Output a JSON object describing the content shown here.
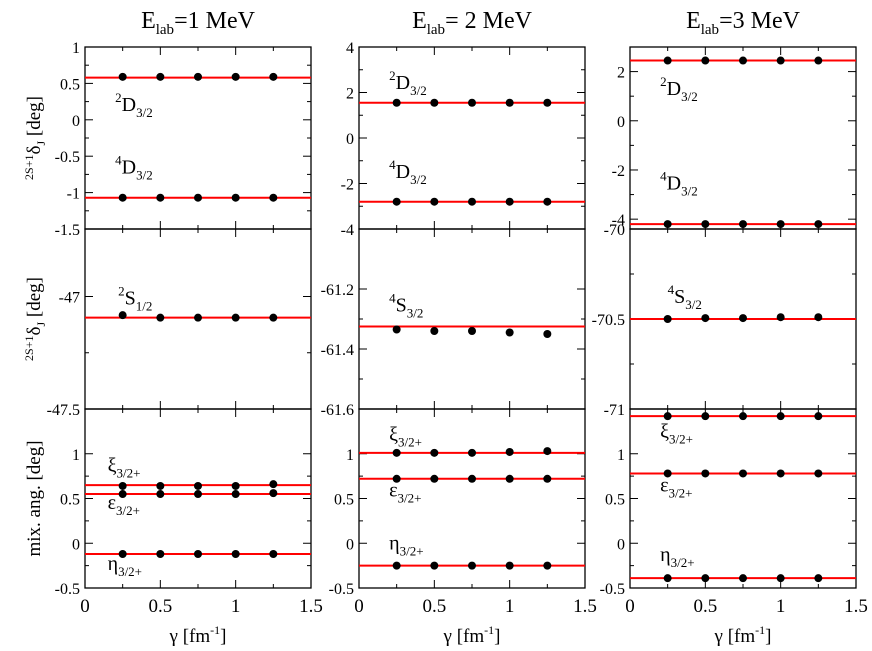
{
  "colors": {
    "line": "#ff0000",
    "point": "#000000",
    "frame": "#000000"
  },
  "chart_data": {
    "type": "scatter",
    "x": [
      0.25,
      0.5,
      0.75,
      1.0,
      1.25
    ],
    "xlim": [
      0,
      1.5
    ],
    "xticks": [
      "0",
      "0.5",
      "1",
      "1.5"
    ],
    "xtick_values": [
      0,
      0.5,
      1,
      1.5
    ],
    "xlabel_main": "γ",
    "xlabel_unit": "[fm",
    "xlabel_exp": "-1",
    "xlabel_close": "]",
    "row_labels": [
      {
        "pre": "2S+1",
        "main": "δ",
        "sub": "J",
        "post": " [deg]"
      },
      {
        "pre": "2S+1",
        "main": "δ",
        "sub": "J",
        "post": " [deg]"
      },
      {
        "pre": "",
        "main": "mix. ang. [deg]",
        "sub": "",
        "post": ""
      }
    ],
    "columns": [
      {
        "title_main": "E",
        "title_sub": "lab",
        "title_rest": "=1 MeV"
      },
      {
        "title_main": "E",
        "title_sub": "lab",
        "title_rest": "= 2 MeV"
      },
      {
        "title_main": "E",
        "title_sub": "lab",
        "title_rest": "=3 MeV"
      }
    ],
    "panels": [
      {
        "row": 0,
        "col": 0,
        "ylim": [
          -1.5,
          1
        ],
        "ytick_values": [
          -1.5,
          -1,
          -0.5,
          0,
          0.5,
          1
        ],
        "ytick_labels": [
          "-1.5",
          "-1",
          "-0.5",
          "0",
          "0.5",
          "1"
        ],
        "series": [
          {
            "name": "2D3/2",
            "line": 0.58,
            "values": [
              0.59,
              0.59,
              0.59,
              0.59,
              0.59
            ],
            "label": {
              "sup": "2",
              "main": "D",
              "sub": "3/2",
              "x": 0.2,
              "y": 0.12
            }
          },
          {
            "name": "4D3/2",
            "line": -1.07,
            "values": [
              -1.07,
              -1.07,
              -1.07,
              -1.07,
              -1.07
            ],
            "label": {
              "sup": "4",
              "main": "D",
              "sub": "3/2",
              "x": 0.2,
              "y": -0.74
            }
          }
        ]
      },
      {
        "row": 0,
        "col": 1,
        "ylim": [
          -4,
          4
        ],
        "ytick_values": [
          -4,
          -2,
          0,
          2,
          4
        ],
        "ytick_labels": [
          "-4",
          "-2",
          "0",
          "2",
          "4"
        ],
        "series": [
          {
            "name": "2D3/2",
            "line": 1.55,
            "values": [
              1.55,
              1.55,
              1.55,
              1.55,
              1.55
            ],
            "label": {
              "sup": "2",
              "main": "D",
              "sub": "3/2",
              "x": 0.2,
              "y": 2.15
            }
          },
          {
            "name": "4D3/2",
            "line": -2.8,
            "values": [
              -2.8,
              -2.8,
              -2.8,
              -2.8,
              -2.8
            ],
            "label": {
              "sup": "4",
              "main": "D",
              "sub": "3/2",
              "x": 0.2,
              "y": -1.75
            }
          }
        ]
      },
      {
        "row": 0,
        "col": 2,
        "ylim": [
          -4.4,
          3
        ],
        "ytick_values": [
          -4,
          -2,
          0,
          2
        ],
        "ytick_labels": [
          "-4",
          "-2",
          "0",
          "2"
        ],
        "series": [
          {
            "name": "2D3/2",
            "line": 2.45,
            "values": [
              2.45,
              2.45,
              2.45,
              2.45,
              2.45
            ],
            "label": {
              "sup": "2",
              "main": "D",
              "sub": "3/2",
              "x": 0.2,
              "y": 1.05
            }
          },
          {
            "name": "4D3/2",
            "line": -4.2,
            "values": [
              -4.2,
              -4.2,
              -4.2,
              -4.2,
              -4.2
            ],
            "label": {
              "sup": "4",
              "main": "D",
              "sub": "3/2",
              "x": 0.2,
              "y": -2.8
            }
          }
        ]
      },
      {
        "row": 1,
        "col": 0,
        "ylim": [
          -47.5,
          -46.7
        ],
        "ytick_values": [
          -47.5,
          -47
        ],
        "ytick_labels": [
          "-47.5",
          "-47"
        ],
        "series": [
          {
            "name": "2S1/2",
            "line": -47.094,
            "values": [
              -47.083,
              -47.094,
              -47.094,
              -47.094,
              -47.094
            ],
            "label": {
              "sup": "2",
              "main": "S",
              "sub": "1/2",
              "x": 0.22,
              "y": -47.035
            }
          }
        ]
      },
      {
        "row": 1,
        "col": 1,
        "ylim": [
          -61.6,
          -61.0
        ],
        "ytick_values": [
          -61.6,
          -61.4,
          -61.2
        ],
        "ytick_labels": [
          "-61.6",
          "-61.4",
          "-61.2"
        ],
        "series": [
          {
            "name": "4S3/2",
            "line": -61.325,
            "values": [
              -61.335,
              -61.34,
              -61.34,
              -61.345,
              -61.35
            ],
            "label": {
              "sup": "4",
              "main": "S",
              "sub": "3/2",
              "x": 0.2,
              "y": -61.275
            }
          }
        ]
      },
      {
        "row": 1,
        "col": 2,
        "ylim": [
          -71,
          -70
        ],
        "ytick_values": [
          -71,
          -70.5,
          -70
        ],
        "ytick_labels": [
          "-71",
          "-70.5",
          "-70"
        ],
        "series": [
          {
            "name": "4S3/2",
            "line": -70.5,
            "values": [
              -70.5,
              -70.495,
              -70.495,
              -70.49,
              -70.49
            ],
            "label": {
              "sup": "4",
              "main": "S",
              "sub": "3/2",
              "x": 0.25,
              "y": -70.41
            }
          }
        ]
      },
      {
        "row": 2,
        "col": 0,
        "ylim": [
          -0.5,
          1.5
        ],
        "ytick_values": [
          -0.5,
          0,
          0.5,
          1
        ],
        "ytick_labels": [
          "-0.5",
          "0",
          "0.5",
          "1"
        ],
        "series": [
          {
            "name": "xi3/2+",
            "line": 0.65,
            "values": [
              0.64,
              0.64,
              0.64,
              0.64,
              0.66
            ],
            "label": {
              "sup": "",
              "main": "ξ",
              "sub": "3/2+",
              "x": 0.15,
              "y": 0.8
            }
          },
          {
            "name": "epsilon3/2+",
            "line": 0.55,
            "values": [
              0.55,
              0.55,
              0.55,
              0.55,
              0.56
            ],
            "label": {
              "sup": "",
              "main": "ε",
              "sub": "3/2+",
              "x": 0.15,
              "y": 0.38
            }
          },
          {
            "name": "eta3/2+",
            "line": -0.12,
            "values": [
              -0.12,
              -0.12,
              -0.12,
              -0.12,
              -0.12
            ],
            "label": {
              "sup": "",
              "main": "η",
              "sub": "3/2+",
              "x": 0.15,
              "y": -0.3
            }
          }
        ]
      },
      {
        "row": 2,
        "col": 1,
        "ylim": [
          -0.5,
          1.5
        ],
        "ytick_values": [
          -0.5,
          0,
          0.5,
          1
        ],
        "ytick_labels": [
          "-0.5",
          "0",
          "0.5",
          "1"
        ],
        "series": [
          {
            "name": "xi3/2+",
            "line": 1.01,
            "values": [
              1.01,
              1.01,
              1.01,
              1.02,
              1.03
            ],
            "label": {
              "sup": "",
              "main": "ξ",
              "sub": "3/2+",
              "x": 0.2,
              "y": 1.15
            }
          },
          {
            "name": "epsilon3/2+",
            "line": 0.72,
            "values": [
              0.72,
              0.72,
              0.72,
              0.72,
              0.72
            ],
            "label": {
              "sup": "",
              "main": "ε",
              "sub": "3/2+",
              "x": 0.2,
              "y": 0.52
            }
          },
          {
            "name": "eta3/2+",
            "line": -0.25,
            "values": [
              -0.25,
              -0.25,
              -0.25,
              -0.25,
              -0.25
            ],
            "label": {
              "sup": "",
              "main": "η",
              "sub": "3/2+",
              "x": 0.2,
              "y": -0.07
            }
          }
        ]
      },
      {
        "row": 2,
        "col": 2,
        "ylim": [
          -0.5,
          1.5
        ],
        "ytick_values": [
          -0.5,
          0,
          0.5,
          1
        ],
        "ytick_labels": [
          "-0.5",
          "0",
          "0.5",
          "1"
        ],
        "series": [
          {
            "name": "upper",
            "line": 1.42,
            "values": [
              1.42,
              1.42,
              1.42,
              1.42,
              1.42
            ],
            "label": null
          },
          {
            "name": "xi3/2+",
            "line": 1.42,
            "values": [],
            "label": {
              "sup": "",
              "main": "ξ",
              "sub": "3/2+",
              "x": 0.2,
              "y": 1.18
            }
          },
          {
            "name": "epsilon3/2+",
            "line": 0.78,
            "values": [
              0.78,
              0.78,
              0.78,
              0.78,
              0.78
            ],
            "label": {
              "sup": "",
              "main": "ε",
              "sub": "3/2+",
              "x": 0.2,
              "y": 0.58
            }
          },
          {
            "name": "eta3/2+",
            "line": -0.39,
            "values": [
              -0.39,
              -0.39,
              -0.39,
              -0.39,
              -0.39
            ],
            "label": {
              "sup": "",
              "main": "η",
              "sub": "3/2+",
              "x": 0.2,
              "y": -0.2
            }
          }
        ]
      }
    ]
  }
}
